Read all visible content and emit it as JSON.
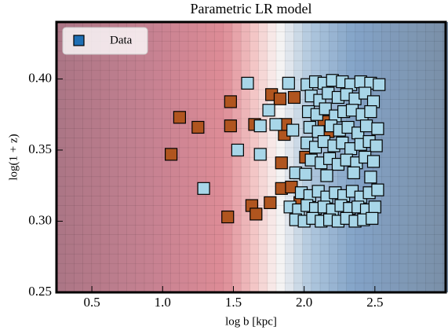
{
  "chart_data": {
    "type": "scatter",
    "title": "Parametric LR model",
    "xlabel": "log b [kpc]",
    "ylabel": "log(1 + z)",
    "xlim": [
      0.25,
      3.0
    ],
    "ylim": [
      0.25,
      0.44
    ],
    "xticks": [
      0.5,
      {
        "value": 1,
        "label": "1.0"
      },
      1.5,
      {
        "value": 2,
        "label": "2.0"
      },
      2.5
    ],
    "yticks": [
      0.25,
      {
        "value": 0.3,
        "label": "0.30"
      },
      0.35,
      {
        "value": 0.4,
        "label": "0.40"
      }
    ],
    "legend": "upper left",
    "series": [
      {
        "name": "Data",
        "color": "#1f6fb4",
        "x": [
          1.06,
          1.12,
          1.25,
          1.46,
          1.48,
          1.48,
          1.63,
          1.66,
          1.65,
          1.76,
          1.77,
          1.83,
          1.93,
          1.84,
          1.84,
          1.91,
          1.86,
          1.87,
          2.01,
          2.14,
          2.17,
          1.97,
          1.6,
          1.29,
          1.53,
          1.69,
          1.69,
          1.8,
          1.89,
          1.94,
          1.92,
          1.75,
          2.02,
          2.08,
          2.14,
          2.2,
          2.27,
          2.33,
          2.4,
          2.47,
          2.53,
          2.05,
          2.11,
          2.17,
          2.24,
          2.3,
          2.36,
          2.43,
          2.49,
          2.03,
          2.09,
          2.15,
          2.22,
          2.28,
          2.34,
          2.41,
          2.47,
          2.04,
          2.1,
          2.19,
          2.25,
          2.31,
          2.38,
          2.44,
          2.52,
          2.02,
          2.08,
          2.14,
          2.21,
          2.27,
          2.33,
          2.4,
          2.46,
          2.51,
          2.05,
          2.12,
          2.18,
          2.24,
          2.3,
          2.37,
          2.43,
          2.49,
          2.01,
          2.16,
          2.35,
          2.47,
          1.98,
          2.04,
          2.1,
          2.16,
          2.22,
          2.28,
          2.34,
          2.4,
          2.46,
          2.52,
          1.9,
          1.96,
          2.02,
          2.08,
          2.14,
          2.2,
          2.26,
          2.32,
          2.38,
          2.44,
          2.5,
          1.94,
          2.0,
          2.06,
          2.12,
          2.18,
          2.24,
          2.3,
          2.36,
          2.42,
          2.48
        ],
        "values": [
          0.347,
          0.373,
          0.366,
          0.303,
          0.384,
          0.367,
          0.311,
          0.305,
          0.368,
          0.313,
          0.389,
          0.386,
          0.387,
          0.341,
          0.323,
          0.324,
          0.361,
          0.368,
          0.345,
          0.37,
          0.363,
          0.313,
          0.397,
          0.323,
          0.35,
          0.347,
          0.367,
          0.368,
          0.397,
          0.334,
          0.364,
          0.378,
          0.396,
          0.398,
          0.397,
          0.399,
          0.398,
          0.396,
          0.398,
          0.397,
          0.396,
          0.388,
          0.385,
          0.39,
          0.387,
          0.389,
          0.386,
          0.39,
          0.384,
          0.377,
          0.375,
          0.379,
          0.374,
          0.377,
          0.378,
          0.375,
          0.377,
          0.366,
          0.363,
          0.367,
          0.364,
          0.366,
          0.362,
          0.367,
          0.365,
          0.355,
          0.352,
          0.356,
          0.353,
          0.355,
          0.351,
          0.354,
          0.356,
          0.353,
          0.343,
          0.341,
          0.344,
          0.34,
          0.343,
          0.341,
          0.345,
          0.342,
          0.333,
          0.332,
          0.334,
          0.331,
          0.32,
          0.318,
          0.321,
          0.317,
          0.32,
          0.318,
          0.321,
          0.317,
          0.32,
          0.322,
          0.31,
          0.308,
          0.311,
          0.309,
          0.31,
          0.308,
          0.311,
          0.309,
          0.31,
          0.308,
          0.31,
          0.301,
          0.3,
          0.302,
          0.3,
          0.301,
          0.3,
          0.302,
          0.3,
          0.301,
          0.302
        ],
        "point_colors": [
          "#b0551f",
          "#b0551f",
          "#b0551f",
          "#b0551f",
          "#b0551f",
          "#b0551f",
          "#b0551f",
          "#b0551f",
          "#b0551f",
          "#b0551f",
          "#b0551f",
          "#b0551f",
          "#b0551f",
          "#b0551f",
          "#b0551f",
          "#b0551f",
          "#b0551f",
          "#b0551f",
          "#b0551f",
          "#b0551f",
          "#b0551f",
          "#b0551f",
          "#a8d6e8",
          "#a8d6e8",
          "#a8d6e8",
          "#a8d6e8",
          "#a8d6e8",
          "#a8d6e8",
          "#a8d6e8",
          "#a8d6e8",
          "#a8d6e8",
          "#a8d6e8",
          "#a8d6e8",
          "#a8d6e8",
          "#a8d6e8",
          "#a8d6e8",
          "#a8d6e8",
          "#a8d6e8",
          "#a8d6e8",
          "#a8d6e8",
          "#a8d6e8",
          "#a8d6e8",
          "#a8d6e8",
          "#a8d6e8",
          "#a8d6e8",
          "#a8d6e8",
          "#a8d6e8",
          "#a8d6e8",
          "#a8d6e8",
          "#a8d6e8",
          "#a8d6e8",
          "#a8d6e8",
          "#a8d6e8",
          "#a8d6e8",
          "#a8d6e8",
          "#a8d6e8",
          "#a8d6e8",
          "#a8d6e8",
          "#a8d6e8",
          "#a8d6e8",
          "#a8d6e8",
          "#a8d6e8",
          "#a8d6e8",
          "#a8d6e8",
          "#a8d6e8",
          "#a8d6e8",
          "#a8d6e8",
          "#a8d6e8",
          "#a8d6e8",
          "#a8d6e8",
          "#a8d6e8",
          "#a8d6e8",
          "#a8d6e8",
          "#a8d6e8",
          "#a8d6e8",
          "#a8d6e8",
          "#a8d6e8",
          "#a8d6e8",
          "#a8d6e8",
          "#a8d6e8",
          "#a8d6e8",
          "#a8d6e8",
          "#a8d6e8",
          "#a8d6e8",
          "#a8d6e8",
          "#a8d6e8",
          "#a8d6e8",
          "#a8d6e8",
          "#a8d6e8",
          "#a8d6e8",
          "#a8d6e8",
          "#a8d6e8",
          "#a8d6e8",
          "#a8d6e8",
          "#a8d6e8",
          "#a8d6e8",
          "#a8d6e8",
          "#a8d6e8",
          "#a8d6e8",
          "#a8d6e8",
          "#a8d6e8",
          "#a8d6e8",
          "#a8d6e8",
          "#a8d6e8",
          "#a8d6e8",
          "#a8d6e8",
          "#a8d6e8",
          "#a8d6e8",
          "#a8d6e8",
          "#a8d6e8",
          "#a8d6e8",
          "#a8d6e8",
          "#a8d6e8",
          "#a8d6e8",
          "#a8d6e8",
          "#a8d6e8",
          "#a8d6e8"
        ]
      }
    ]
  }
}
